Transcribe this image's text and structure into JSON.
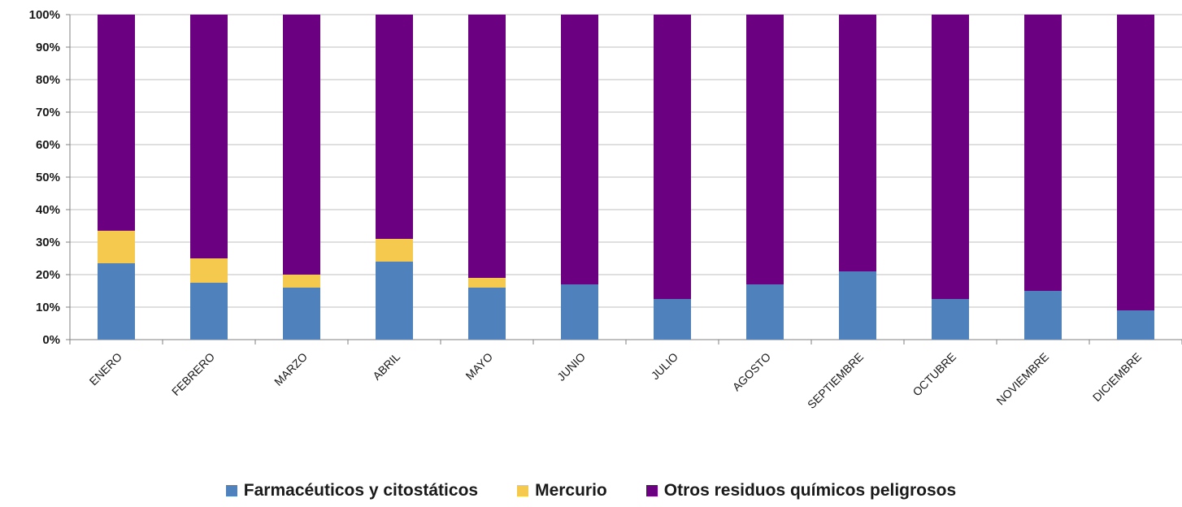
{
  "chart_data": {
    "type": "bar",
    "stacked": true,
    "categories": [
      "ENERO",
      "FEBRERO",
      "MARZO",
      "ABRIL",
      "MAYO",
      "JUNIO",
      "JULIO",
      "AGOSTO",
      "SEPTIEMBRE",
      "OCTUBRE",
      "NOVIEMBRE",
      "DICIEMBRE"
    ],
    "series": [
      {
        "name": "Farmacéuticos y citostáticos",
        "color": "#4f81bd",
        "values": [
          23.5,
          17.5,
          16,
          24,
          16,
          17,
          12.5,
          17,
          21,
          12.5,
          15,
          9
        ]
      },
      {
        "name": "Mercurio",
        "color": "#f5c94e",
        "values": [
          10,
          7.5,
          4,
          7,
          3,
          0,
          0,
          0,
          0,
          0,
          0,
          0
        ]
      },
      {
        "name": "Otros residuos químicos peligrosos",
        "color": "#6b0080",
        "values": [
          66.5,
          75,
          80,
          69,
          81,
          83,
          87.5,
          83,
          79,
          87.5,
          85,
          91
        ]
      }
    ],
    "yticks": [
      "0%",
      "10%",
      "20%",
      "30%",
      "40%",
      "50%",
      "60%",
      "70%",
      "80%",
      "90%",
      "100%"
    ],
    "ylim": [
      0,
      100
    ],
    "grid": true,
    "legend_position": "bottom"
  }
}
